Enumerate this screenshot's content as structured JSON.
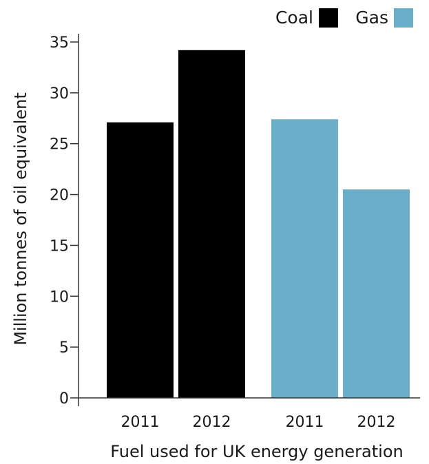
{
  "chart_data": {
    "type": "bar",
    "title": "",
    "xlabel": "Fuel used for UK energy generation",
    "ylabel": "Million tonnes of oil equivalent",
    "ylim": [
      0,
      35
    ],
    "yticks": [
      0,
      5,
      10,
      15,
      20,
      25,
      30,
      35
    ],
    "categories": [
      "2011",
      "2012"
    ],
    "series": [
      {
        "name": "Coal",
        "color": "#000000",
        "values": [
          27.1,
          34.2
        ]
      },
      {
        "name": "Gas",
        "color": "#6aaec9",
        "values": [
          27.4,
          20.5
        ]
      }
    ],
    "legend": {
      "position": "top-right"
    },
    "grid": false
  }
}
